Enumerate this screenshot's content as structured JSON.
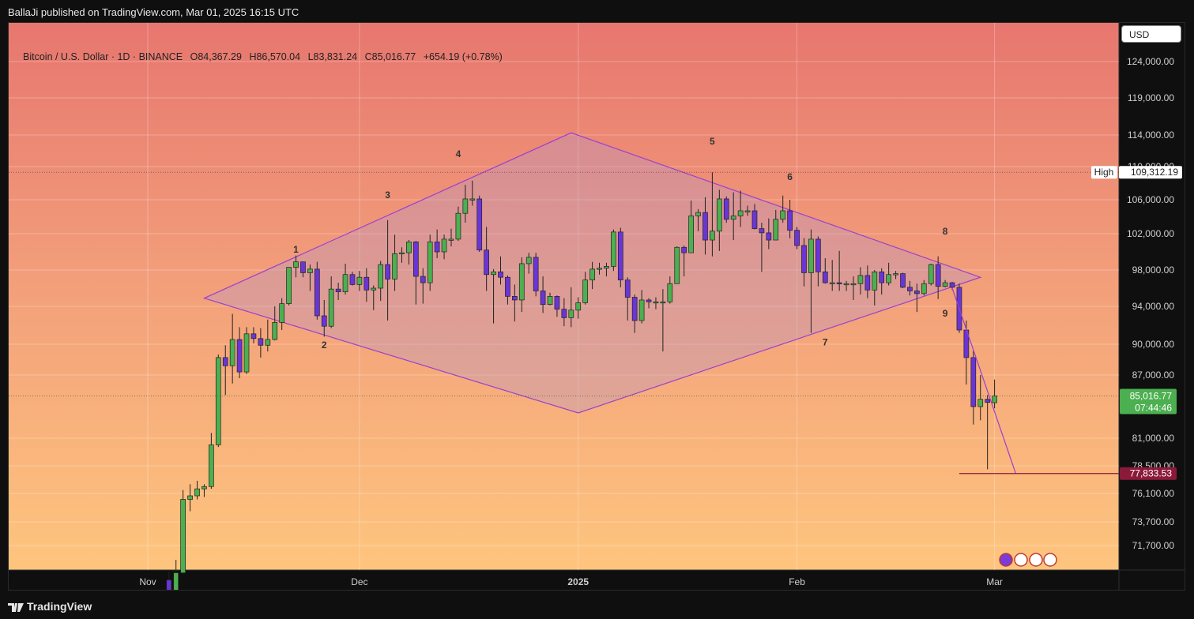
{
  "header": {
    "published": "BallaJi published on TradingView.com, Mar 01, 2025 16:15 UTC"
  },
  "legend": {
    "symbol": "Bitcoin / U.S. Dollar · 1D · BINANCE",
    "open": "O84,367.29",
    "high": "H86,570.04",
    "low": "L83,831.24",
    "close": "C85,016.77",
    "change": "+654.19 (+0.78%)"
  },
  "currency_button": "USD",
  "footer": {
    "brand": "TradingView"
  },
  "colors": {
    "bull": "#4caf50",
    "bear": "#6a35d6",
    "pattern": "#9b3fcf",
    "target": "#8b1a3a"
  },
  "chart_data": {
    "type": "candlestick",
    "price_axis": {
      "ticks": [
        "124,000.00",
        "119,000.00",
        "114,000.00",
        "110,000.00",
        "106,000.00",
        "102,000.00",
        "98,000.00",
        "94,000.00",
        "90,000.00",
        "87,000.00",
        "81,000.00",
        "78,500.00",
        "76,100.00",
        "73,700.00",
        "71,700.00"
      ]
    },
    "time_axis": {
      "ticks": [
        "Nov",
        "Dec",
        "2025",
        "Feb",
        "Mar"
      ]
    },
    "labels": {
      "high_tag": "High",
      "high_value": "109,312.19",
      "last_price": "85,016.77",
      "countdown": "07:44:46",
      "target_price": "77,833.53"
    },
    "wave_labels": [
      "1",
      "2",
      "3",
      "4",
      "5",
      "6",
      "7",
      "8",
      "9"
    ],
    "series": [
      {
        "d": "2024-11-04",
        "o": 68800,
        "h": 69500,
        "l": 66800,
        "c": 67800
      },
      {
        "d": "2024-11-05",
        "o": 67800,
        "h": 70500,
        "l": 67500,
        "c": 69400
      },
      {
        "d": "2024-11-06",
        "o": 69400,
        "h": 76400,
        "l": 69300,
        "c": 75600
      },
      {
        "d": "2024-11-07",
        "o": 75600,
        "h": 76900,
        "l": 74600,
        "c": 75900
      },
      {
        "d": "2024-11-08",
        "o": 75900,
        "h": 77200,
        "l": 75600,
        "c": 76500
      },
      {
        "d": "2024-11-09",
        "o": 76500,
        "h": 76900,
        "l": 75800,
        "c": 76700
      },
      {
        "d": "2024-11-10",
        "o": 76700,
        "h": 81500,
        "l": 76500,
        "c": 80400
      },
      {
        "d": "2024-11-11",
        "o": 80400,
        "h": 89000,
        "l": 80200,
        "c": 88700
      },
      {
        "d": "2024-11-12",
        "o": 88700,
        "h": 89900,
        "l": 85100,
        "c": 87900
      },
      {
        "d": "2024-11-13",
        "o": 87900,
        "h": 93200,
        "l": 86200,
        "c": 90500
      },
      {
        "d": "2024-11-14",
        "o": 90500,
        "h": 91800,
        "l": 86700,
        "c": 87300
      },
      {
        "d": "2024-11-15",
        "o": 87300,
        "h": 91800,
        "l": 87100,
        "c": 91100
      },
      {
        "d": "2024-11-16",
        "o": 91100,
        "h": 91800,
        "l": 90100,
        "c": 90600
      },
      {
        "d": "2024-11-17",
        "o": 90600,
        "h": 91700,
        "l": 88700,
        "c": 89900
      },
      {
        "d": "2024-11-18",
        "o": 89900,
        "h": 92600,
        "l": 89300,
        "c": 90500
      },
      {
        "d": "2024-11-19",
        "o": 90500,
        "h": 94000,
        "l": 90400,
        "c": 92300
      },
      {
        "d": "2024-11-20",
        "o": 92300,
        "h": 94900,
        "l": 91500,
        "c": 94300
      },
      {
        "d": "2024-11-21",
        "o": 94300,
        "h": 98000,
        "l": 94100,
        "c": 98300
      },
      {
        "d": "2024-11-22",
        "o": 98300,
        "h": 99600,
        "l": 97200,
        "c": 98900
      },
      {
        "d": "2024-11-23",
        "o": 98900,
        "h": 98800,
        "l": 97200,
        "c": 97700
      },
      {
        "d": "2024-11-24",
        "o": 97700,
        "h": 98600,
        "l": 95700,
        "c": 98100
      },
      {
        "d": "2024-11-25",
        "o": 98100,
        "h": 98900,
        "l": 92600,
        "c": 93000
      },
      {
        "d": "2024-11-26",
        "o": 93000,
        "h": 94700,
        "l": 90800,
        "c": 91900
      },
      {
        "d": "2024-11-27",
        "o": 91900,
        "h": 97300,
        "l": 91700,
        "c": 95900
      },
      {
        "d": "2024-11-28",
        "o": 95900,
        "h": 96600,
        "l": 94700,
        "c": 95600
      },
      {
        "d": "2024-11-29",
        "o": 95600,
        "h": 98700,
        "l": 95300,
        "c": 97500
      },
      {
        "d": "2024-11-30",
        "o": 97500,
        "h": 97800,
        "l": 96300,
        "c": 96400
      },
      {
        "d": "2024-12-01",
        "o": 96400,
        "h": 97900,
        "l": 95700,
        "c": 97200
      },
      {
        "d": "2024-12-02",
        "o": 97200,
        "h": 98200,
        "l": 94500,
        "c": 95800
      },
      {
        "d": "2024-12-03",
        "o": 95800,
        "h": 96300,
        "l": 93600,
        "c": 96000
      },
      {
        "d": "2024-12-04",
        "o": 96000,
        "h": 99000,
        "l": 94600,
        "c": 98600
      },
      {
        "d": "2024-12-05",
        "o": 98600,
        "h": 103600,
        "l": 92500,
        "c": 97000
      },
      {
        "d": "2024-12-06",
        "o": 97000,
        "h": 101900,
        "l": 95700,
        "c": 99800
      },
      {
        "d": "2024-12-07",
        "o": 99800,
        "h": 100500,
        "l": 98800,
        "c": 99900
      },
      {
        "d": "2024-12-08",
        "o": 99900,
        "h": 101300,
        "l": 98600,
        "c": 101100
      },
      {
        "d": "2024-12-09",
        "o": 101100,
        "h": 101200,
        "l": 94200,
        "c": 97300
      },
      {
        "d": "2024-12-10",
        "o": 97300,
        "h": 98200,
        "l": 94300,
        "c": 96600
      },
      {
        "d": "2024-12-11",
        "o": 96600,
        "h": 101900,
        "l": 95700,
        "c": 101100
      },
      {
        "d": "2024-12-12",
        "o": 101100,
        "h": 102500,
        "l": 99300,
        "c": 100000
      },
      {
        "d": "2024-12-13",
        "o": 100000,
        "h": 101900,
        "l": 99200,
        "c": 101400
      },
      {
        "d": "2024-12-14",
        "o": 101400,
        "h": 102600,
        "l": 100600,
        "c": 101400
      },
      {
        "d": "2024-12-15",
        "o": 101400,
        "h": 105200,
        "l": 101200,
        "c": 104400
      },
      {
        "d": "2024-12-16",
        "o": 104400,
        "h": 107800,
        "l": 103300,
        "c": 106100
      },
      {
        "d": "2024-12-17",
        "o": 106100,
        "h": 108300,
        "l": 105300,
        "c": 106100
      },
      {
        "d": "2024-12-18",
        "o": 106100,
        "h": 106500,
        "l": 100000,
        "c": 100200
      },
      {
        "d": "2024-12-19",
        "o": 100200,
        "h": 102800,
        "l": 95700,
        "c": 97500
      },
      {
        "d": "2024-12-20",
        "o": 97500,
        "h": 98100,
        "l": 92200,
        "c": 97800
      },
      {
        "d": "2024-12-21",
        "o": 97800,
        "h": 99500,
        "l": 96400,
        "c": 97200
      },
      {
        "d": "2024-12-22",
        "o": 97200,
        "h": 97400,
        "l": 94200,
        "c": 95100
      },
      {
        "d": "2024-12-23",
        "o": 95100,
        "h": 96400,
        "l": 92400,
        "c": 94700
      },
      {
        "d": "2024-12-24",
        "o": 94700,
        "h": 99400,
        "l": 93400,
        "c": 98700
      },
      {
        "d": "2024-12-25",
        "o": 98700,
        "h": 99900,
        "l": 97600,
        "c": 99400
      },
      {
        "d": "2024-12-26",
        "o": 99400,
        "h": 99900,
        "l": 95100,
        "c": 95700
      },
      {
        "d": "2024-12-27",
        "o": 95700,
        "h": 97300,
        "l": 93300,
        "c": 94200
      },
      {
        "d": "2024-12-28",
        "o": 94200,
        "h": 95500,
        "l": 94100,
        "c": 95100
      },
      {
        "d": "2024-12-29",
        "o": 95100,
        "h": 95200,
        "l": 92900,
        "c": 93700
      },
      {
        "d": "2024-12-30",
        "o": 93700,
        "h": 94900,
        "l": 91900,
        "c": 92800
      },
      {
        "d": "2024-12-31",
        "o": 92800,
        "h": 96100,
        "l": 91800,
        "c": 93600
      },
      {
        "d": "2025-01-01",
        "o": 93600,
        "h": 95000,
        "l": 92700,
        "c": 94400
      },
      {
        "d": "2025-01-02",
        "o": 94400,
        "h": 97800,
        "l": 94200,
        "c": 96900
      },
      {
        "d": "2025-01-03",
        "o": 96900,
        "h": 98900,
        "l": 95900,
        "c": 98100
      },
      {
        "d": "2025-01-04",
        "o": 98100,
        "h": 98800,
        "l": 97500,
        "c": 98200
      },
      {
        "d": "2025-01-05",
        "o": 98200,
        "h": 98800,
        "l": 97300,
        "c": 98400
      },
      {
        "d": "2025-01-06",
        "o": 98400,
        "h": 102500,
        "l": 97900,
        "c": 102200
      },
      {
        "d": "2025-01-07",
        "o": 102200,
        "h": 102700,
        "l": 96100,
        "c": 96900
      },
      {
        "d": "2025-01-08",
        "o": 96900,
        "h": 97200,
        "l": 92500,
        "c": 95000
      },
      {
        "d": "2025-01-09",
        "o": 95000,
        "h": 95300,
        "l": 91200,
        "c": 92500
      },
      {
        "d": "2025-01-10",
        "o": 92500,
        "h": 95800,
        "l": 92200,
        "c": 94700
      },
      {
        "d": "2025-01-11",
        "o": 94700,
        "h": 94900,
        "l": 93800,
        "c": 94500
      },
      {
        "d": "2025-01-12",
        "o": 94500,
        "h": 95000,
        "l": 93700,
        "c": 94500
      },
      {
        "d": "2025-01-13",
        "o": 94500,
        "h": 95900,
        "l": 89300,
        "c": 94500
      },
      {
        "d": "2025-01-14",
        "o": 94500,
        "h": 97300,
        "l": 94300,
        "c": 96500
      },
      {
        "d": "2025-01-15",
        "o": 96500,
        "h": 100600,
        "l": 96500,
        "c": 100500
      },
      {
        "d": "2025-01-16",
        "o": 100500,
        "h": 100700,
        "l": 97300,
        "c": 99900
      },
      {
        "d": "2025-01-17",
        "o": 99900,
        "h": 105900,
        "l": 99900,
        "c": 104100
      },
      {
        "d": "2025-01-18",
        "o": 104100,
        "h": 104900,
        "l": 102300,
        "c": 104500
      },
      {
        "d": "2025-01-19",
        "o": 104500,
        "h": 106300,
        "l": 99700,
        "c": 101300
      },
      {
        "d": "2025-01-20",
        "o": 101300,
        "h": 109312,
        "l": 99500,
        "c": 102300
      },
      {
        "d": "2025-01-21",
        "o": 102300,
        "h": 107200,
        "l": 100100,
        "c": 106100
      },
      {
        "d": "2025-01-22",
        "o": 106100,
        "h": 106400,
        "l": 103300,
        "c": 103700
      },
      {
        "d": "2025-01-23",
        "o": 103700,
        "h": 106900,
        "l": 101300,
        "c": 104100
      },
      {
        "d": "2025-01-24",
        "o": 104100,
        "h": 107100,
        "l": 102800,
        "c": 104700
      },
      {
        "d": "2025-01-25",
        "o": 104700,
        "h": 105300,
        "l": 104100,
        "c": 104700
      },
      {
        "d": "2025-01-26",
        "o": 104700,
        "h": 105500,
        "l": 102500,
        "c": 102600
      },
      {
        "d": "2025-01-27",
        "o": 102600,
        "h": 103300,
        "l": 97800,
        "c": 102100
      },
      {
        "d": "2025-01-28",
        "o": 102100,
        "h": 103800,
        "l": 100300,
        "c": 101300
      },
      {
        "d": "2025-01-29",
        "o": 101300,
        "h": 104800,
        "l": 101300,
        "c": 103700
      },
      {
        "d": "2025-01-30",
        "o": 103700,
        "h": 106500,
        "l": 103300,
        "c": 104700
      },
      {
        "d": "2025-01-31",
        "o": 104700,
        "h": 106000,
        "l": 101500,
        "c": 102400
      },
      {
        "d": "2025-02-01",
        "o": 102400,
        "h": 102800,
        "l": 100300,
        "c": 100700
      },
      {
        "d": "2025-02-02",
        "o": 100700,
        "h": 101500,
        "l": 96200,
        "c": 97700
      },
      {
        "d": "2025-02-03",
        "o": 97700,
        "h": 102500,
        "l": 91200,
        "c": 101400
      },
      {
        "d": "2025-02-04",
        "o": 101400,
        "h": 101700,
        "l": 96200,
        "c": 97800
      },
      {
        "d": "2025-02-05",
        "o": 97800,
        "h": 99300,
        "l": 96500,
        "c": 96600
      },
      {
        "d": "2025-02-06",
        "o": 96600,
        "h": 99100,
        "l": 95700,
        "c": 96600
      },
      {
        "d": "2025-02-07",
        "o": 96600,
        "h": 100100,
        "l": 95700,
        "c": 96500
      },
      {
        "d": "2025-02-08",
        "o": 96500,
        "h": 96800,
        "l": 95700,
        "c": 96500
      },
      {
        "d": "2025-02-09",
        "o": 96500,
        "h": 97300,
        "l": 94700,
        "c": 96500
      },
      {
        "d": "2025-02-10",
        "o": 96500,
        "h": 98300,
        "l": 95300,
        "c": 97400
      },
      {
        "d": "2025-02-11",
        "o": 97400,
        "h": 98500,
        "l": 94900,
        "c": 95800
      },
      {
        "d": "2025-02-12",
        "o": 95800,
        "h": 98000,
        "l": 94100,
        "c": 97800
      },
      {
        "d": "2025-02-13",
        "o": 97800,
        "h": 98200,
        "l": 95300,
        "c": 96600
      },
      {
        "d": "2025-02-14",
        "o": 96600,
        "h": 98800,
        "l": 96300,
        "c": 97500
      },
      {
        "d": "2025-02-15",
        "o": 97500,
        "h": 97900,
        "l": 97000,
        "c": 97600
      },
      {
        "d": "2025-02-16",
        "o": 97600,
        "h": 97700,
        "l": 96000,
        "c": 96100
      },
      {
        "d": "2025-02-17",
        "o": 96100,
        "h": 96800,
        "l": 95200,
        "c": 95700
      },
      {
        "d": "2025-02-18",
        "o": 95700,
        "h": 96500,
        "l": 93400,
        "c": 95400
      },
      {
        "d": "2025-02-19",
        "o": 95400,
        "h": 96900,
        "l": 95200,
        "c": 96500
      },
      {
        "d": "2025-02-20",
        "o": 96500,
        "h": 98700,
        "l": 96300,
        "c": 98600
      },
      {
        "d": "2025-02-21",
        "o": 98600,
        "h": 99500,
        "l": 94800,
        "c": 96200
      },
      {
        "d": "2025-02-22",
        "o": 96200,
        "h": 96900,
        "l": 96100,
        "c": 96600
      },
      {
        "d": "2025-02-23",
        "o": 96600,
        "h": 96700,
        "l": 95800,
        "c": 96100
      },
      {
        "d": "2025-02-24",
        "o": 96100,
        "h": 96500,
        "l": 91200,
        "c": 91500
      },
      {
        "d": "2025-02-25",
        "o": 91500,
        "h": 92500,
        "l": 86100,
        "c": 88700
      },
      {
        "d": "2025-02-26",
        "o": 88700,
        "h": 89400,
        "l": 82300,
        "c": 84000
      },
      {
        "d": "2025-02-27",
        "o": 84000,
        "h": 87000,
        "l": 82700,
        "c": 84700
      },
      {
        "d": "2025-02-28",
        "o": 84700,
        "h": 85100,
        "l": 78200,
        "c": 84400
      },
      {
        "d": "2025-03-01",
        "o": 84367.29,
        "h": 86570.04,
        "l": 83831.24,
        "c": 85016.77
      }
    ]
  }
}
